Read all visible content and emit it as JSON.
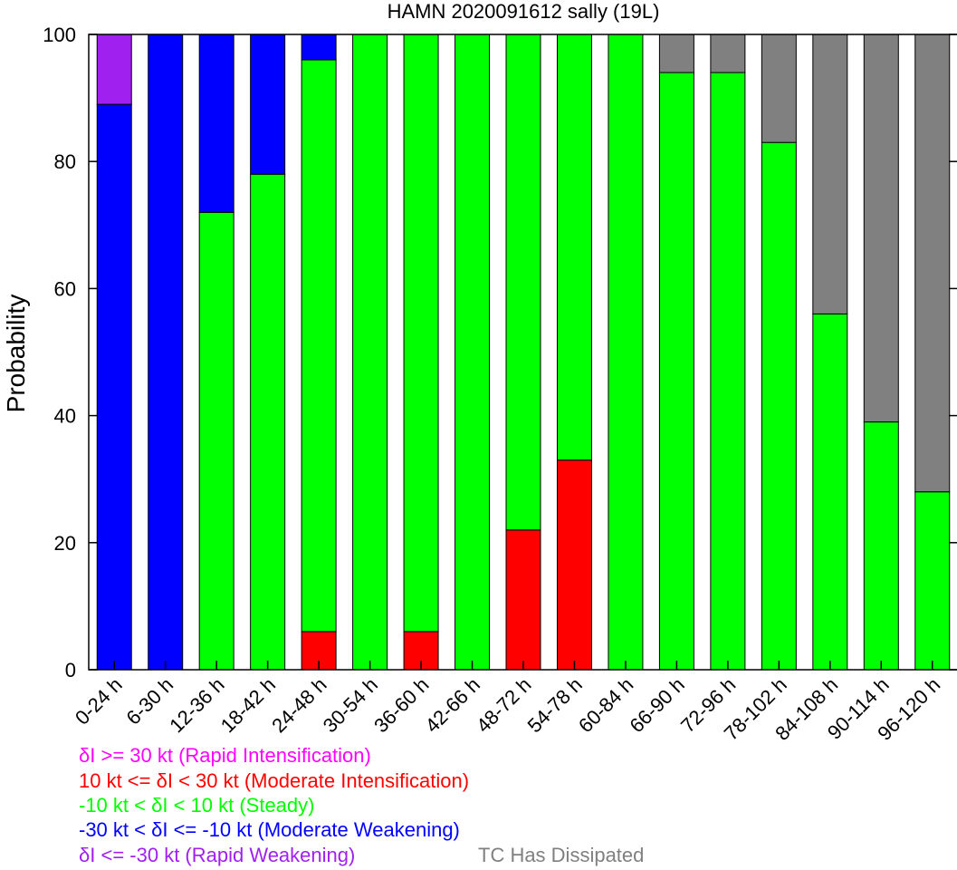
{
  "chart_data": {
    "type": "bar",
    "stacked": true,
    "title": "HAMN 2020091612 sally (19L)",
    "xlabel": "",
    "ylabel": "Probability",
    "ylim": [
      0,
      100
    ],
    "yticks": [
      0,
      20,
      40,
      60,
      80,
      100
    ],
    "grid": false,
    "categories": [
      "0-24 h",
      "6-30 h",
      "12-36 h",
      "18-42 h",
      "24-48 h",
      "30-54 h",
      "36-60 h",
      "42-66 h",
      "48-72 h",
      "54-78 h",
      "60-84 h",
      "66-90 h",
      "72-96 h",
      "78-102 h",
      "84-108 h",
      "90-114 h",
      "96-120 h"
    ],
    "series": [
      {
        "key": "mi",
        "color": "#ff0000",
        "values": [
          0,
          0,
          0,
          0,
          6,
          0,
          6,
          0,
          22,
          33,
          0,
          0,
          0,
          0,
          0,
          0,
          0
        ]
      },
      {
        "key": "steady",
        "color": "#00ff00",
        "values": [
          0,
          0,
          72,
          78,
          90,
          100,
          94,
          100,
          78,
          67,
          100,
          94,
          94,
          83,
          56,
          39,
          28
        ]
      },
      {
        "key": "mw",
        "color": "#0000ff",
        "values": [
          89,
          100,
          28,
          22,
          4,
          0,
          0,
          0,
          0,
          0,
          0,
          0,
          0,
          0,
          0,
          0,
          0
        ]
      },
      {
        "key": "rw",
        "color": "#a020f0",
        "values": [
          11,
          0,
          0,
          0,
          0,
          0,
          0,
          0,
          0,
          0,
          0,
          0,
          0,
          0,
          0,
          0,
          0
        ]
      },
      {
        "key": "dissipated",
        "color": "#808080",
        "values": [
          0,
          0,
          0,
          0,
          0,
          0,
          0,
          0,
          0,
          0,
          0,
          6,
          6,
          17,
          44,
          61,
          72
        ]
      }
    ],
    "legend": {
      "placement": "bottom-left",
      "entries": [
        {
          "text": "δI >= 30 kt (Rapid Intensification)",
          "color": "#ff00ff"
        },
        {
          "text": "10 kt <= δI < 30 kt (Moderate Intensification)",
          "color": "#ff0000"
        },
        {
          "text": "-10 kt < δI < 10 kt (Steady)",
          "color": "#00ff00"
        },
        {
          "text": "-30 kt < δI <= -10 kt (Moderate Weakening)",
          "color": "#0000ff"
        },
        {
          "text": "δI <= -30 kt (Rapid Weakening)",
          "color": "#a020f0"
        },
        {
          "text": "TC Has Dissipated",
          "color": "#808080"
        }
      ]
    }
  }
}
